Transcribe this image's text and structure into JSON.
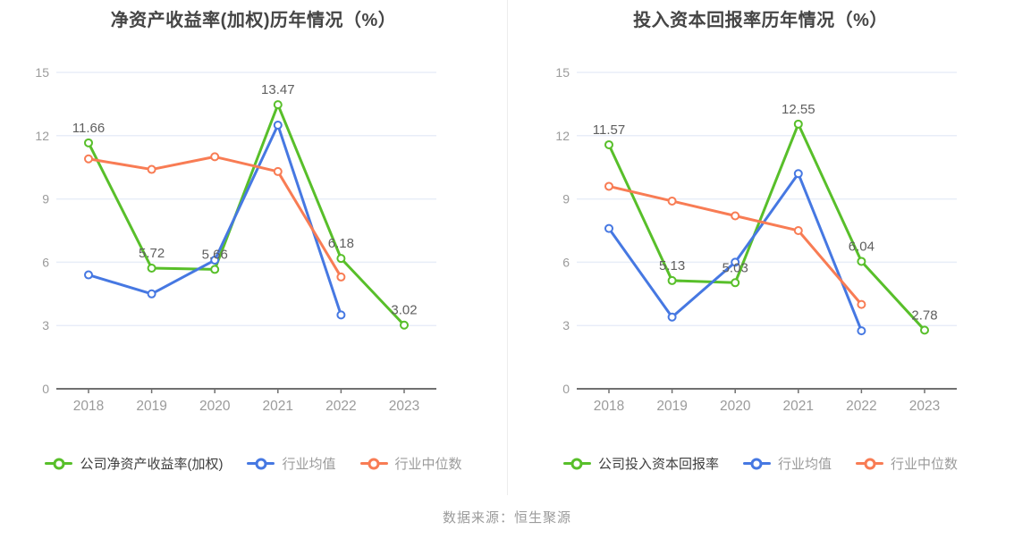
{
  "source_note": "数据来源：恒生聚源",
  "colors": {
    "company": "#58bf2a",
    "industry_mean": "#4678e2",
    "industry_median": "#f87c54",
    "grid": "#e8edf8",
    "axis": "#707070",
    "tick_label": "#9b9b9b",
    "title": "#454545",
    "data_label": "#5f5f5f",
    "legend_primary": "#3f3f3f",
    "legend_secondary": "#9b9b9b",
    "divider": "#ededed",
    "source": "#9b9b9b",
    "background": "#ffffff"
  },
  "chart_data": [
    {
      "type": "line",
      "title": "净资产收益率(加权)历年情况（%）",
      "categories": [
        "2018",
        "2019",
        "2020",
        "2021",
        "2022",
        "2023"
      ],
      "series": [
        {
          "name": "公司净资产收益率(加权)",
          "color_key": "company",
          "values": [
            11.66,
            5.72,
            5.66,
            13.47,
            6.18,
            3.02
          ],
          "show_labels": true
        },
        {
          "name": "行业均值",
          "color_key": "industry_mean",
          "values": [
            5.4,
            4.5,
            6.1,
            12.5,
            3.5,
            null
          ],
          "show_labels": false
        },
        {
          "name": "行业中位数",
          "color_key": "industry_median",
          "values": [
            10.9,
            10.4,
            11.0,
            10.3,
            5.3,
            null
          ],
          "show_labels": false
        }
      ],
      "data_labels": [
        "11.66",
        "5.72",
        "5.66",
        "13.47",
        "6.18",
        "3.02"
      ],
      "ylim": [
        0,
        15
      ],
      "yticks": [
        0,
        3,
        6,
        9,
        12,
        15
      ],
      "grid": true,
      "legend_position": "bottom"
    },
    {
      "type": "line",
      "title": "投入资本回报率历年情况（%）",
      "categories": [
        "2018",
        "2019",
        "2020",
        "2021",
        "2022",
        "2023"
      ],
      "series": [
        {
          "name": "公司投入资本回报率",
          "color_key": "company",
          "values": [
            11.57,
            5.13,
            5.03,
            12.55,
            6.04,
            2.78
          ],
          "show_labels": true
        },
        {
          "name": "行业均值",
          "color_key": "industry_mean",
          "values": [
            7.6,
            3.4,
            6.0,
            10.2,
            2.75,
            null
          ],
          "show_labels": false
        },
        {
          "name": "行业中位数",
          "color_key": "industry_median",
          "values": [
            9.6,
            8.9,
            8.2,
            7.5,
            4.0,
            null
          ],
          "show_labels": false
        }
      ],
      "data_labels": [
        "11.57",
        "5.13",
        "5.03",
        "12.55",
        "6.04",
        "2.78"
      ],
      "ylim": [
        0,
        15
      ],
      "yticks": [
        0,
        3,
        6,
        9,
        12,
        15
      ],
      "grid": true,
      "legend_position": "bottom"
    }
  ]
}
